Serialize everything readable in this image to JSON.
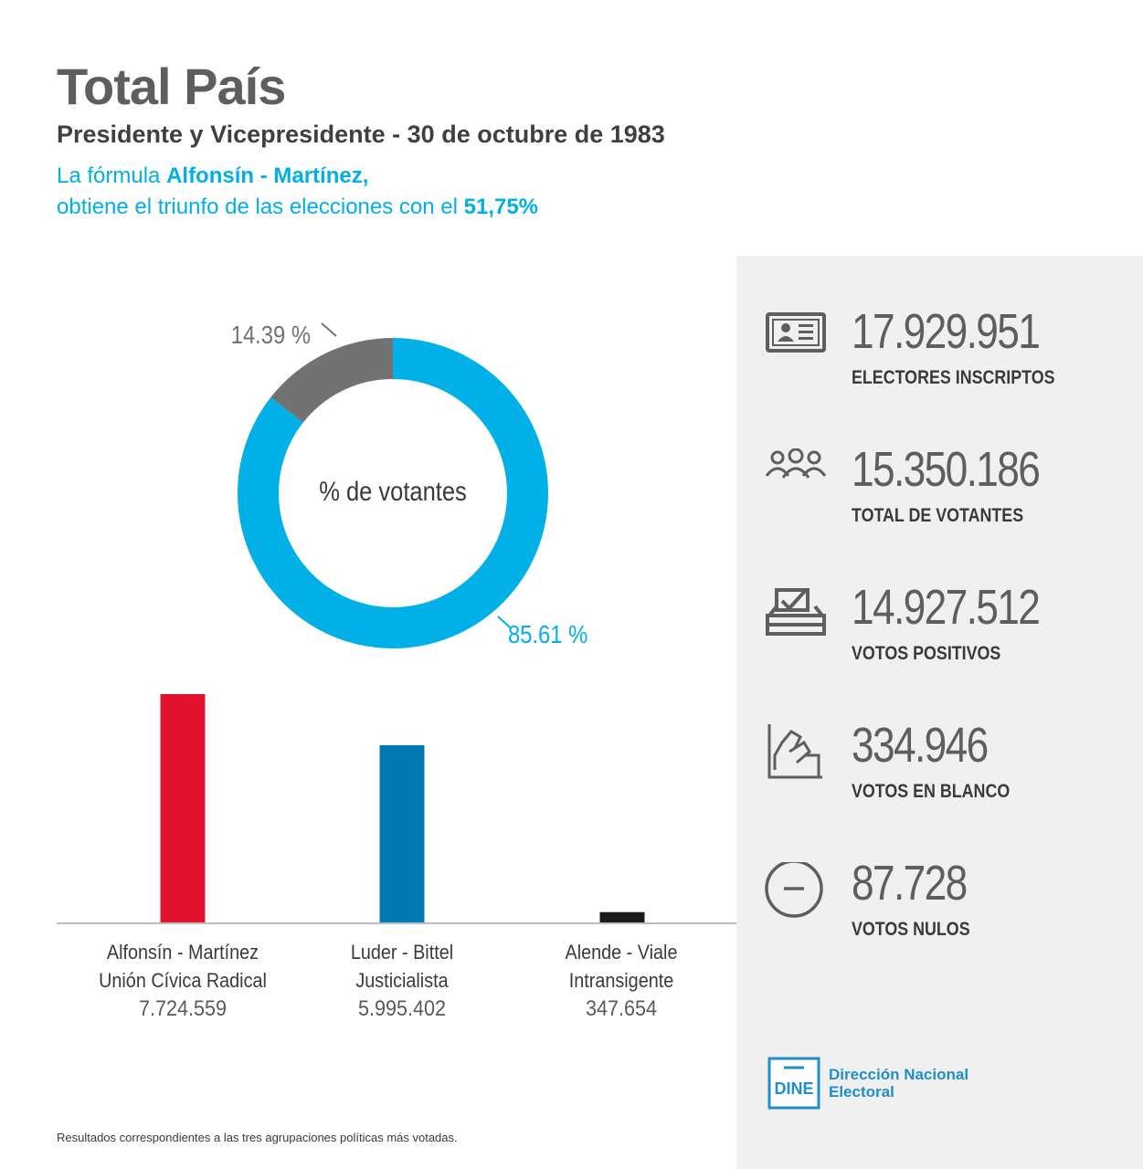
{
  "header": {
    "title": "Total País",
    "subtitle": "Presidente y Vicepresidente - 30 de octubre de 1983",
    "headline_part1": "La fórmula ",
    "headline_bold": "Alfonsín - Martínez,",
    "headline_part2": "obtiene el triunfo de las elecciones con el ",
    "headline_pct": "51,75%"
  },
  "stats": [
    {
      "value": "17.929.951",
      "label": "ELECTORES INSCRIPTOS",
      "icon": "id-card-icon"
    },
    {
      "value": "15.350.186",
      "label": "TOTAL DE VOTANTES",
      "icon": "people-icon"
    },
    {
      "value": "14.927.512",
      "label": "VOTOS POSITIVOS",
      "icon": "ballot-box-icon"
    },
    {
      "value": "334.946",
      "label": "VOTOS EN BLANCO",
      "icon": "blank-vote-icon"
    },
    {
      "value": "87.728",
      "label": "VOTOS NULOS",
      "icon": "minus-circle-icon"
    }
  ],
  "footnote": "Resultados correspondientes a las tres agrupaciones políticas más votadas.",
  "logo": {
    "short": "DINE",
    "line1": "Dirección Nacional",
    "line2": "Electoral"
  },
  "colors": {
    "accent": "#00b0e6",
    "gray": "#727272",
    "red": "#e2112e",
    "blue": "#0078b2",
    "black": "#1a1a1a",
    "panel": "#f1f0f0"
  },
  "chart_data": [
    {
      "type": "pie",
      "center_label": "% de votantes",
      "slices": [
        {
          "value": 85.61,
          "label": "85.61 %",
          "color": "#00b0e6"
        },
        {
          "value": 14.39,
          "label": "14.39 %",
          "color": "#727272"
        }
      ]
    },
    {
      "type": "bar",
      "categories": [
        "Alfonsín - Martínez",
        "Luder - Bittel",
        "Alende - Viale"
      ],
      "parties": [
        "Unión Cívica Radical",
        "Justicialista",
        "Intransigente"
      ],
      "values": [
        7724559,
        5995402,
        347654
      ],
      "value_labels": [
        "7.724.559",
        "5.995.402",
        "347.654"
      ],
      "colors": [
        "#e2112e",
        "#0078b2",
        "#1a1a1a"
      ]
    }
  ]
}
